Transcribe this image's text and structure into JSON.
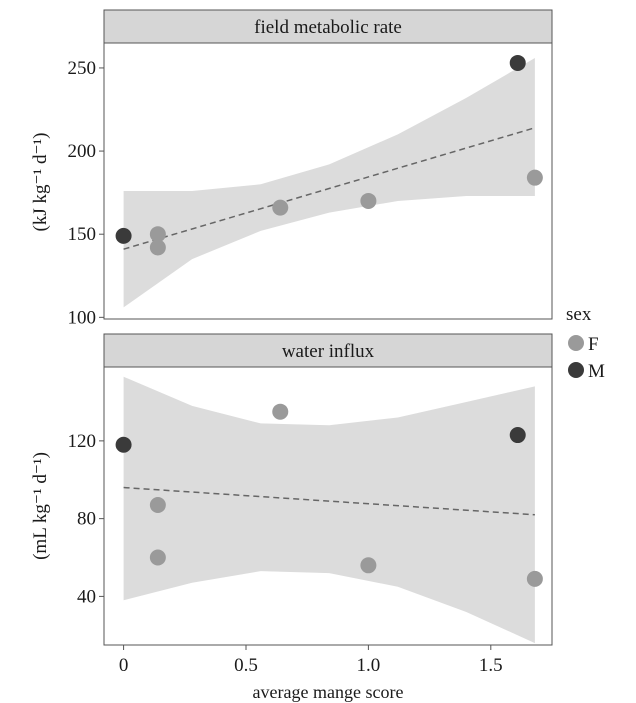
{
  "colors": {
    "F": "#9a9a9a",
    "M": "#3a3a3a",
    "ribbon": "#dcdcdc",
    "strip": "#d6d6d6",
    "trend": "#666666"
  },
  "legend": {
    "title": "sex",
    "entries": [
      {
        "key": "F",
        "label": "F"
      },
      {
        "key": "M",
        "label": "M"
      }
    ]
  },
  "xlabel": "average mange score",
  "chart_data": [
    {
      "type": "scatter",
      "panel_title": "field metabolic rate",
      "ylabel": "(kJ kg⁻¹ d⁻¹)",
      "xlim": [
        -0.08,
        1.75
      ],
      "ylim": [
        99,
        265
      ],
      "x_ticks": [
        0,
        0.5,
        1.0,
        1.5
      ],
      "x_tick_labels": [
        "0",
        "0.5",
        "1.0",
        "1.5"
      ],
      "y_ticks": [
        100,
        150,
        200,
        250
      ],
      "y_tick_labels": [
        "100",
        "150",
        "200",
        "250"
      ],
      "series": [
        {
          "name": "F",
          "x": [
            0.14,
            0.14,
            0.64,
            1.0,
            1.68
          ],
          "y": [
            150,
            142,
            166,
            170,
            184
          ]
        },
        {
          "name": "M",
          "x": [
            0,
            1.61
          ],
          "y": [
            149,
            253
          ]
        }
      ],
      "trend": {
        "x": [
          0,
          1.68
        ],
        "y": [
          141,
          214
        ]
      },
      "band": {
        "x": [
          0,
          0.28,
          0.56,
          0.84,
          1.12,
          1.4,
          1.68
        ],
        "lower": [
          106,
          135,
          152,
          163,
          170,
          173,
          173
        ],
        "upper": [
          176,
          176,
          180,
          192,
          210,
          232,
          256
        ]
      }
    },
    {
      "type": "scatter",
      "panel_title": "water influx",
      "ylabel": "(mL kg⁻¹ d⁻¹)",
      "xlim": [
        -0.08,
        1.75
      ],
      "ylim": [
        15,
        158
      ],
      "x_ticks": [
        0,
        0.5,
        1.0,
        1.5
      ],
      "x_tick_labels": [
        "0",
        "0.5",
        "1.0",
        "1.5"
      ],
      "y_ticks": [
        40,
        80,
        120
      ],
      "y_tick_labels": [
        "40",
        "80",
        "120"
      ],
      "series": [
        {
          "name": "F",
          "x": [
            0.14,
            0.14,
            0.64,
            1.0,
            1.68
          ],
          "y": [
            87,
            60,
            135,
            56,
            49
          ]
        },
        {
          "name": "M",
          "x": [
            0,
            1.61
          ],
          "y": [
            118,
            123
          ]
        }
      ],
      "trend": {
        "x": [
          0,
          1.68
        ],
        "y": [
          96,
          82
        ]
      },
      "band": {
        "x": [
          0,
          0.28,
          0.56,
          0.84,
          1.12,
          1.4,
          1.68
        ],
        "lower": [
          38,
          47,
          53,
          52,
          45,
          32,
          16
        ],
        "upper": [
          153,
          138,
          129,
          128,
          132,
          140,
          148
        ]
      }
    }
  ]
}
